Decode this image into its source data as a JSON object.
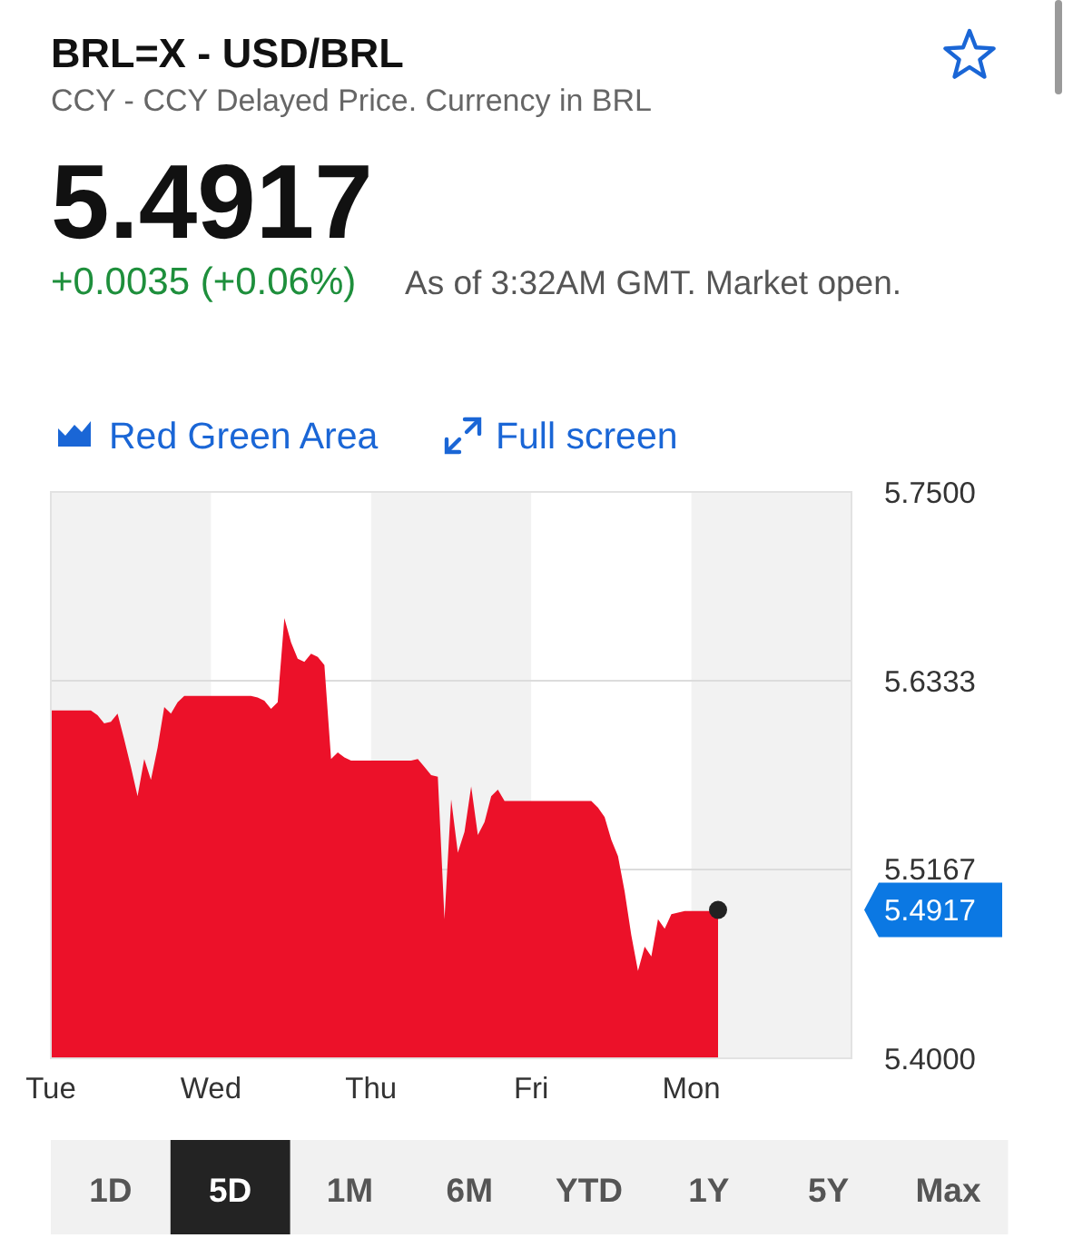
{
  "chart_data": {
    "type": "area",
    "title": "BRL=X - USD/BRL",
    "subtitle": "CCY - CCY Delayed Price. Currency in BRL",
    "categories": [
      "Tue",
      null,
      null,
      null,
      null,
      null,
      null,
      null,
      null,
      null,
      null,
      null,
      null,
      null,
      null,
      null,
      null,
      null,
      null,
      null,
      null,
      null,
      null,
      null,
      "Wed",
      null,
      null,
      null,
      null,
      null,
      null,
      null,
      null,
      null,
      null,
      null,
      null,
      null,
      null,
      null,
      null,
      null,
      null,
      null,
      null,
      null,
      null,
      null,
      "Thu",
      null,
      null,
      null,
      null,
      null,
      null,
      null,
      null,
      null,
      null,
      null,
      null,
      null,
      null,
      null,
      null,
      null,
      null,
      null,
      null,
      null,
      null,
      null,
      "Fri",
      null,
      null,
      null,
      null,
      null,
      null,
      null,
      null,
      null,
      null,
      null,
      null,
      null,
      null,
      null,
      null,
      null,
      null,
      null,
      null,
      null,
      null,
      null,
      "Mon",
      null,
      null,
      null,
      null,
      null,
      null,
      null,
      null,
      null,
      null,
      null,
      null,
      null,
      null,
      null,
      null,
      null,
      null,
      null,
      null,
      null,
      null,
      null,
      null
    ],
    "values": [
      5.615,
      5.615,
      5.615,
      5.615,
      5.615,
      5.615,
      5.615,
      5.612,
      5.607,
      5.608,
      5.613,
      5.597,
      5.58,
      5.562,
      5.585,
      5.572,
      5.592,
      5.617,
      5.613,
      5.62,
      5.624,
      5.624,
      5.624,
      5.624,
      5.624,
      5.624,
      5.624,
      5.624,
      5.624,
      5.624,
      5.624,
      5.623,
      5.621,
      5.616,
      5.62,
      5.672,
      5.657,
      5.647,
      5.645,
      5.65,
      5.648,
      5.643,
      5.585,
      5.589,
      5.586,
      5.584,
      5.584,
      5.584,
      5.584,
      5.584,
      5.584,
      5.584,
      5.584,
      5.584,
      5.584,
      5.585,
      5.58,
      5.575,
      5.574,
      5.486,
      5.56,
      5.527,
      5.54,
      5.568,
      5.538,
      5.546,
      5.562,
      5.566,
      5.559,
      5.559,
      5.559,
      5.559,
      5.559,
      5.559,
      5.559,
      5.559,
      5.559,
      5.559,
      5.559,
      5.559,
      5.559,
      5.559,
      5.555,
      5.549,
      5.535,
      5.525,
      5.503,
      5.476,
      5.454,
      5.469,
      5.463,
      5.486,
      5.48,
      5.489,
      5.49,
      5.491,
      5.491,
      5.491,
      5.491,
      5.491,
      5.4917,
      null,
      null,
      null,
      null,
      null,
      null,
      null,
      null,
      null,
      null,
      null,
      null,
      null,
      null,
      null,
      null,
      null,
      null,
      null,
      null
    ],
    "color": "#ec1129",
    "ylim": [
      5.4,
      5.75
    ],
    "yticks": [
      {
        "value": 5.75,
        "label": "5.7500"
      },
      5.6333,
      5.5167,
      {
        "value": 5.4,
        "label": "5.4000"
      }
    ],
    "grid": "y",
    "annotations": [
      "5.4917",
      "+0.0035 (+0.06%)",
      "As of 3:32AM GMT. Market open.",
      "Red Green Area",
      "Full screen",
      "1D",
      "5D",
      "1M",
      "6M",
      "YTD",
      "1Y",
      "5Y",
      "Max",
      "5.4917"
    ]
  }
}
